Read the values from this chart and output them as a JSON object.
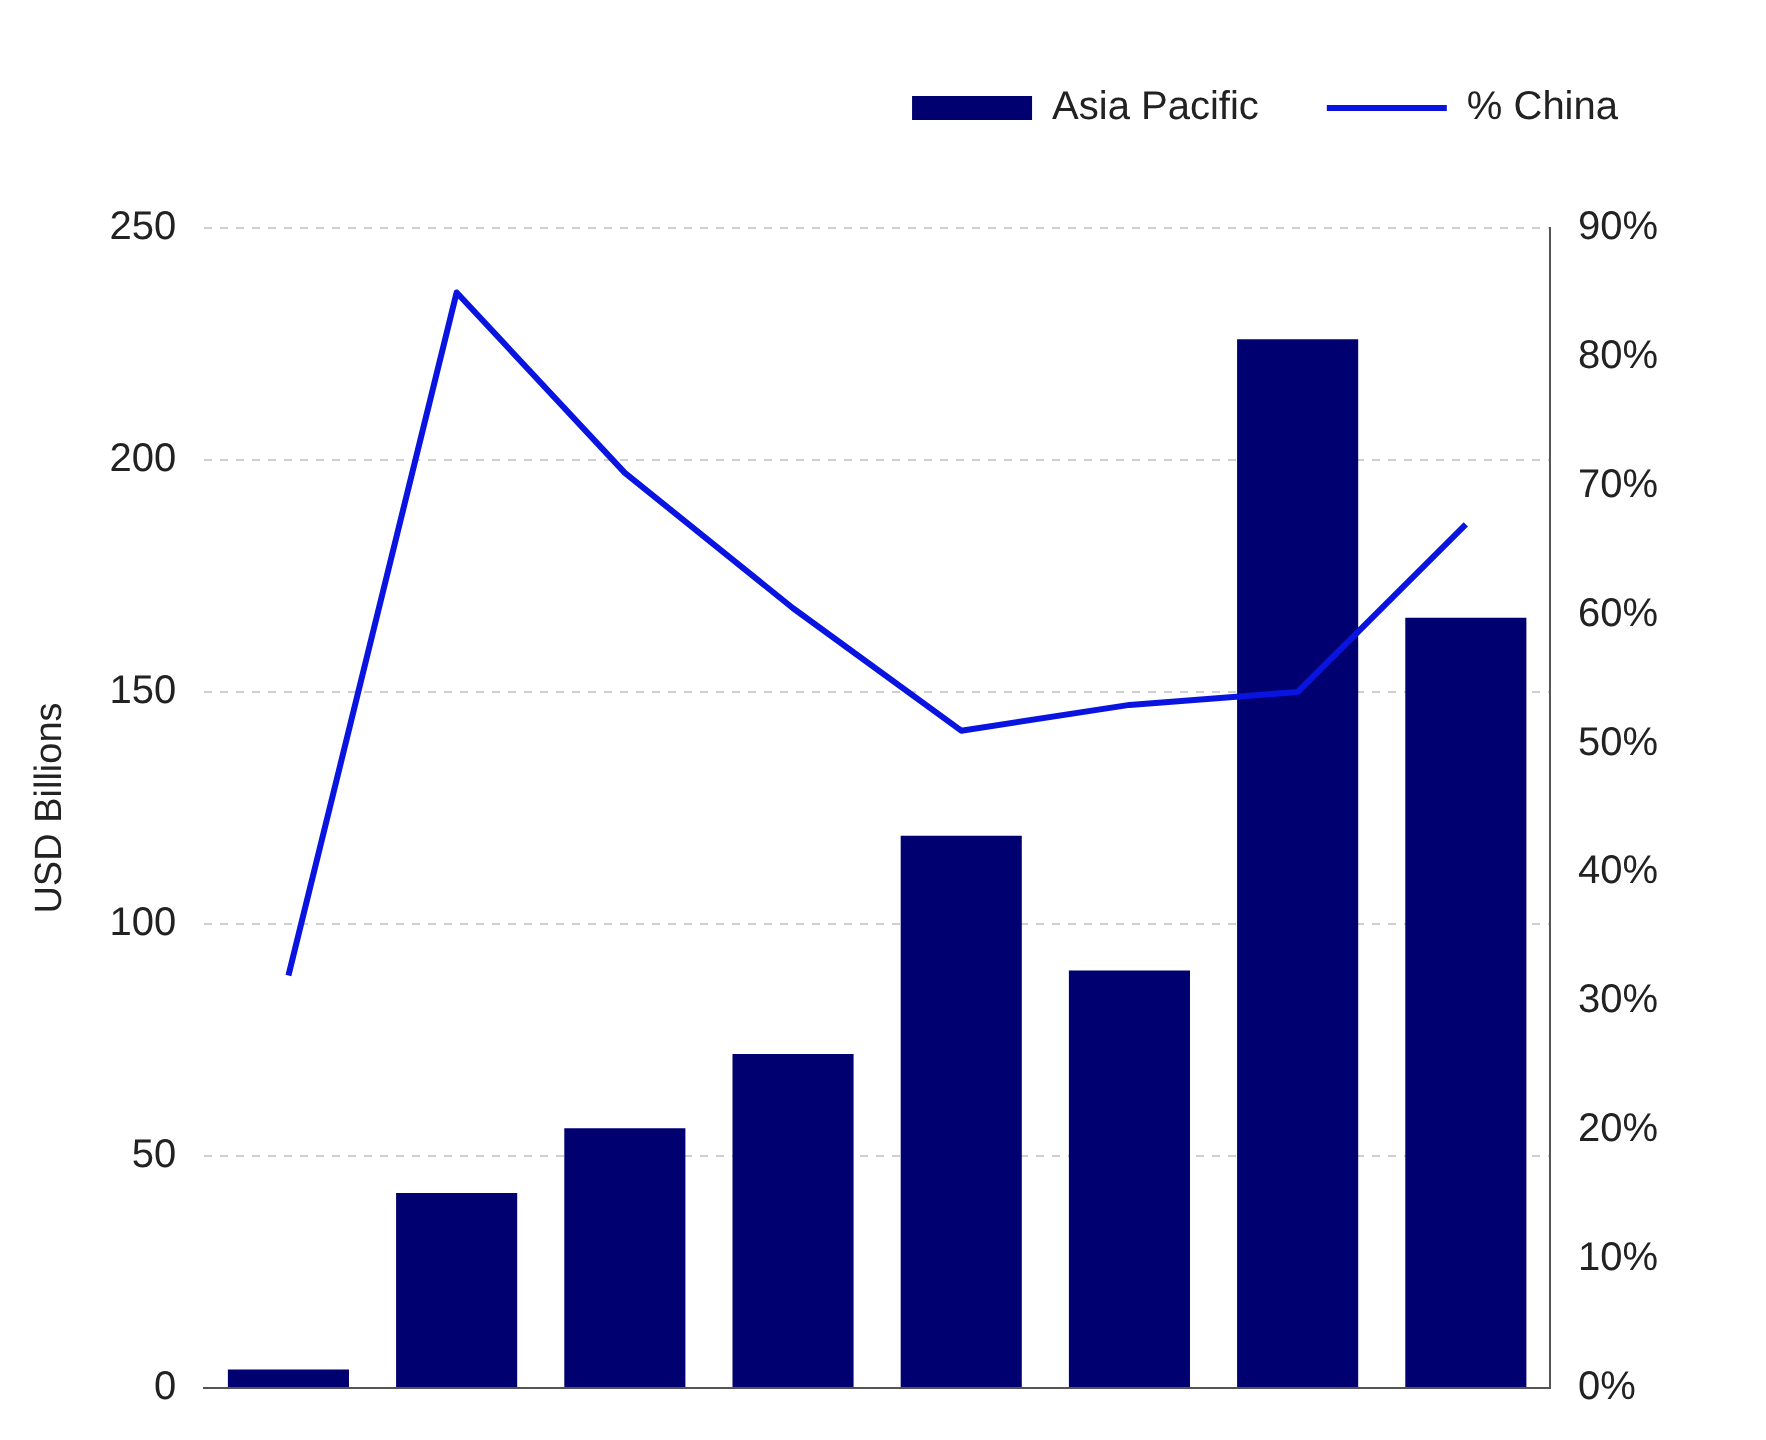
{
  "chart_data": {
    "type": "bar",
    "ylabel": "USD Billions",
    "categories": [
      null,
      null,
      null,
      null,
      null,
      null,
      null,
      null
    ],
    "series": [
      {
        "name": "Asia Pacific",
        "color": "#000070",
        "values": [
          4,
          42,
          56,
          72,
          119,
          90,
          226,
          166
        ]
      },
      {
        "name": "% China",
        "type": "line",
        "axis": "y2",
        "color": "#0a14e0",
        "values": [
          32,
          85,
          71,
          60.5,
          51,
          53,
          54,
          67
        ]
      }
    ],
    "ylim": [
      0,
      250
    ],
    "yticks": [
      0,
      50,
      100,
      150,
      200,
      250
    ],
    "y2lim": [
      0,
      90
    ],
    "y2ticks": [
      {
        "value": 0,
        "label": "0%"
      },
      {
        "value": 10,
        "label": "10%"
      },
      {
        "value": 20,
        "label": "20%"
      },
      {
        "value": 30,
        "label": "30%"
      },
      {
        "value": 40,
        "label": "40%"
      },
      {
        "value": 50,
        "label": "50%"
      },
      {
        "value": 60,
        "label": "60%"
      },
      {
        "value": 70,
        "label": "70%"
      },
      {
        "value": 80,
        "label": "80%"
      },
      {
        "value": 90,
        "label": "90%"
      }
    ],
    "grid": "y",
    "legend": "top right",
    "marker": "none",
    "line_style": "solid"
  }
}
